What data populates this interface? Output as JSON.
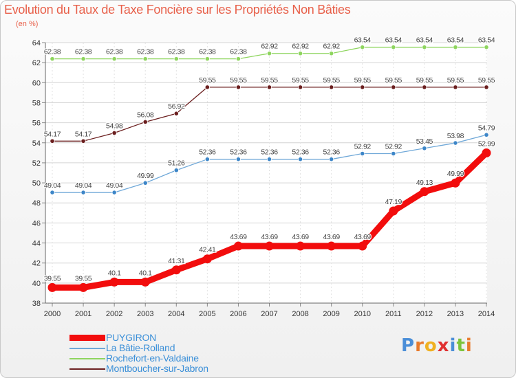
{
  "title": "Evolution du Taux de Taxe Foncière sur les Propriétés Non Bâties",
  "unit_label": "(en %)",
  "logo": {
    "letters": [
      "P",
      "r",
      "o",
      "x",
      "i",
      "t",
      "i"
    ],
    "colors": [
      "#4a8ed8",
      "#e87a2c",
      "#f0b020",
      "#e03030",
      "#4a8ed8",
      "#7cc43c",
      "#e87a2c"
    ]
  },
  "chart_data": {
    "type": "line",
    "title": "Evolution du Taux de Taxe Foncière sur les Propriétés Non Bâties",
    "ylabel": "(en %)",
    "xlabel": "",
    "x": [
      "2000",
      "2001",
      "2002",
      "2003",
      "2004",
      "2005",
      "2006",
      "2007",
      "2008",
      "2009",
      "2010",
      "2011",
      "2012",
      "2013",
      "2014"
    ],
    "ylim": [
      38,
      64
    ],
    "yticks": [
      "38",
      "40",
      "42",
      "44",
      "46",
      "48",
      "50",
      "52",
      "54",
      "56",
      "58",
      "60",
      "62",
      "64"
    ],
    "grid": true,
    "legend_position": "bottom-left",
    "series": [
      {
        "name": "Rochefort-en-Valdaine",
        "color": "#8ed55e",
        "dot": "#8ed55e",
        "thick": false,
        "values": [
          62.38,
          62.38,
          62.38,
          62.38,
          62.38,
          62.38,
          62.38,
          62.92,
          62.92,
          62.92,
          63.54,
          63.54,
          63.54,
          63.54,
          63.54
        ],
        "labels": [
          "62.38",
          "62.38",
          "62.38",
          "62.38",
          "62.38",
          "62.38",
          "62.38",
          "62.92",
          "62.92",
          "62.92",
          "63.54",
          "63.54",
          "63.54",
          "63.54",
          "63.54"
        ]
      },
      {
        "name": "Montboucher-sur-Jabron",
        "color": "#6b1f1f",
        "dot": "#6b1f1f",
        "thick": false,
        "values": [
          54.17,
          54.17,
          54.98,
          56.08,
          56.92,
          59.55,
          59.55,
          59.55,
          59.55,
          59.55,
          59.55,
          59.55,
          59.55,
          59.55,
          59.55
        ],
        "labels": [
          "54.17",
          "54.17",
          "54.98",
          "56.08",
          "56.92",
          "59.55",
          "59.55",
          "59.55",
          "59.55",
          "59.55",
          "59.55",
          "59.55",
          "59.55",
          "59.55",
          "59.55"
        ]
      },
      {
        "name": "La Bâtie-Rolland",
        "color": "#6fa8d8",
        "dot": "#3d86c8",
        "thick": false,
        "values": [
          49.04,
          49.04,
          49.04,
          49.99,
          51.26,
          52.36,
          52.36,
          52.36,
          52.36,
          52.36,
          52.92,
          52.92,
          53.45,
          53.98,
          54.79
        ],
        "labels": [
          "49.04",
          "49.04",
          "49.04",
          "49.99",
          "51.26",
          "52.36",
          "52.36",
          "52.36",
          "52.36",
          "52.36",
          "52.92",
          "52.92",
          "53.45",
          "53.98",
          "54.79"
        ]
      },
      {
        "name": "PUYGIRON",
        "color": "#f20d0d",
        "dot": "#f20d0d",
        "thick": true,
        "values": [
          39.55,
          39.55,
          40.1,
          40.1,
          41.31,
          42.41,
          43.69,
          43.69,
          43.69,
          43.69,
          43.69,
          47.19,
          49.13,
          49.99,
          52.99
        ],
        "labels": [
          "39.55",
          "39.55",
          "40.1",
          "40.1",
          "41.31",
          "42.41",
          "43.69",
          "43.69",
          "43.69",
          "43.69",
          "43.69",
          "47.19",
          "49.13",
          "49.99",
          "52.99"
        ]
      }
    ],
    "legend": [
      {
        "name": "PUYGIRON",
        "color": "#f20d0d",
        "thick": true
      },
      {
        "name": "La Bâtie-Rolland",
        "color": "#6fa8d8",
        "thick": false
      },
      {
        "name": "Rochefort-en-Valdaine",
        "color": "#8ed55e",
        "thick": false
      },
      {
        "name": "Montboucher-sur-Jabron",
        "color": "#6b1f1f",
        "thick": false
      }
    ]
  }
}
